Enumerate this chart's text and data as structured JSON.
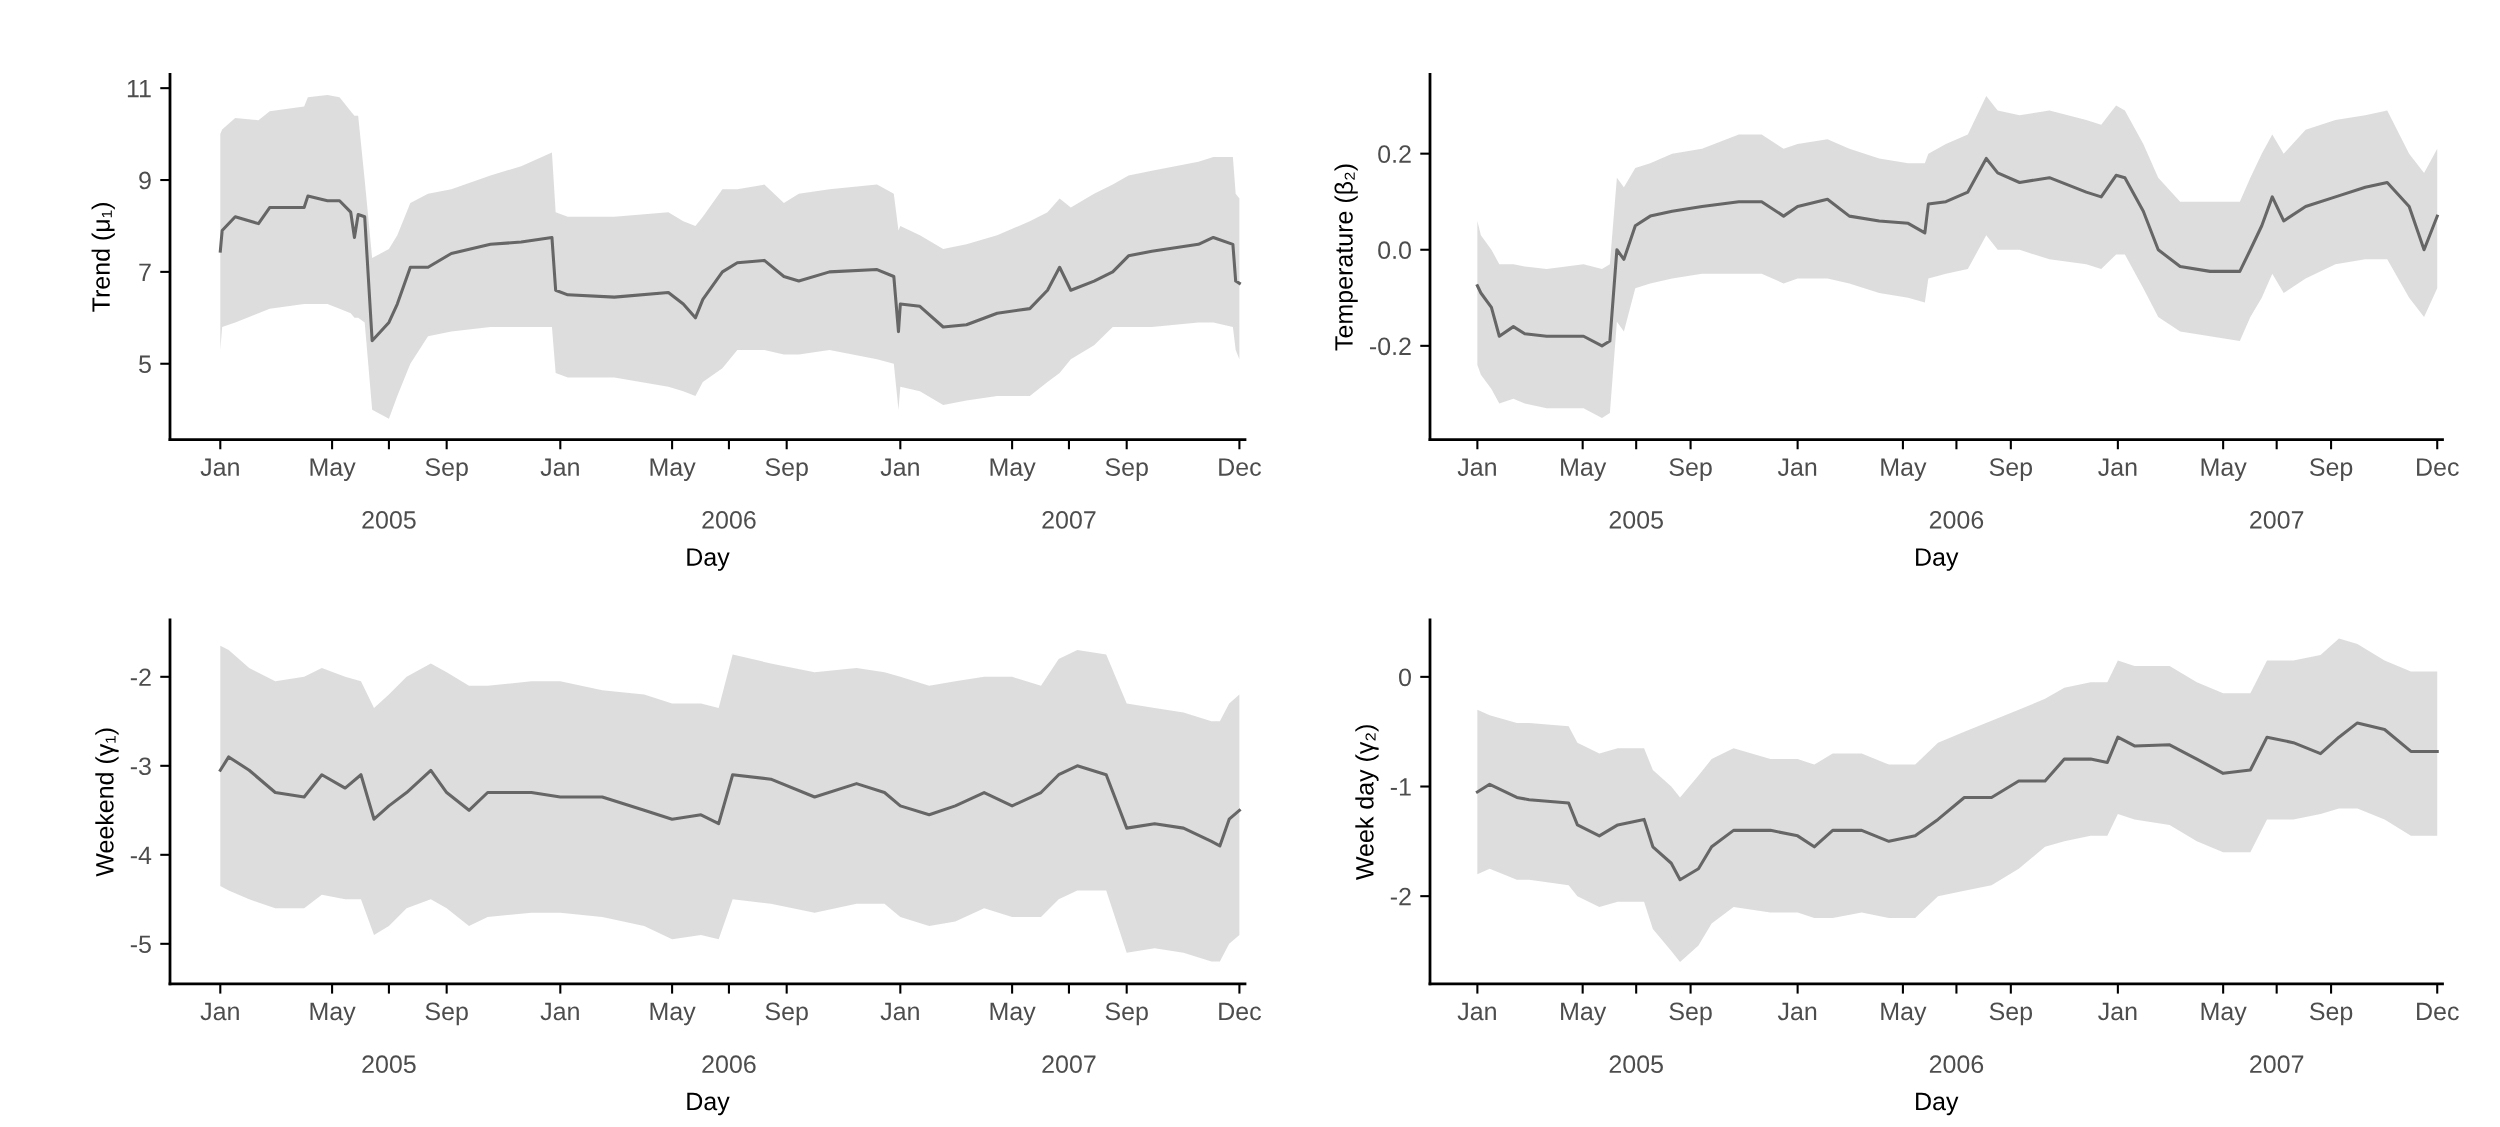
{
  "chart_data": [
    {
      "type": "line",
      "xlabel": "Day",
      "ylabel": "Trend (μ₁)",
      "xlim": [
        "2004-11-08",
        "2008-01-06"
      ],
      "ylim": [
        3.35,
        11.3
      ],
      "yticks": [
        5,
        7,
        9,
        11
      ],
      "xticks": [
        {
          "value": "2005-01-01",
          "label": "Jan"
        },
        {
          "value": "2005-05-01",
          "label": "May"
        },
        {
          "value": "2005-09-01",
          "label": "Sep"
        },
        {
          "value": "2006-01-01",
          "label": "Jan"
        },
        {
          "value": "2006-05-01",
          "label": "May"
        },
        {
          "value": "2006-09-01",
          "label": "Sep"
        },
        {
          "value": "2007-01-01",
          "label": "Jan"
        },
        {
          "value": "2007-05-01",
          "label": "May"
        },
        {
          "value": "2007-09-01",
          "label": "Sep"
        },
        {
          "value": "2007-12-31",
          "label": "Dec"
        }
      ],
      "x2lim": [
        "2004-11-08",
        "2008-01-06"
      ],
      "x2ticks": [
        {
          "value": "2005-07-01",
          "label": "2005"
        },
        {
          "value": "2006-07-01",
          "label": "2006"
        },
        {
          "value": "2007-07-01",
          "label": "2007"
        }
      ],
      "grid": false,
      "marker": "none",
      "line_style": "solid",
      "x": [
        "2005-01-01",
        "2005-01-03",
        "2005-01-17",
        "2005-02-11",
        "2005-02-23",
        "2005-04-01",
        "2005-04-05",
        "2005-04-26",
        "2005-05-09",
        "2005-05-21",
        "2005-05-25",
        "2005-05-29",
        "2005-06-05",
        "2005-06-13",
        "2005-07-01",
        "2005-07-10",
        "2005-07-24",
        "2005-08-12",
        "2005-09-06",
        "2005-10-18",
        "2005-11-20",
        "2005-12-23",
        "2005-12-27",
        "2006-01-09",
        "2006-02-28",
        "2006-04-27",
        "2006-05-13",
        "2006-05-26",
        "2006-06-03",
        "2006-06-24",
        "2006-07-10",
        "2006-08-08",
        "2006-08-29",
        "2006-09-14",
        "2006-10-17",
        "2006-12-07",
        "2006-12-25",
        "2006-12-30",
        "2007-01-01",
        "2007-01-22",
        "2007-02-16",
        "2007-03-13",
        "2007-04-15",
        "2007-05-20",
        "2007-06-08",
        "2007-06-21",
        "2007-07-03",
        "2007-07-28",
        "2007-08-17",
        "2007-09-03",
        "2007-09-28",
        "2007-11-17",
        "2007-12-03",
        "2007-12-24",
        "2007-12-27",
        "2007-12-31"
      ],
      "series": [
        {
          "color": "#666666",
          "values": [
            7.45,
            7.9,
            8.2,
            8.05,
            8.4,
            8.4,
            8.65,
            8.55,
            8.55,
            8.3,
            7.75,
            8.25,
            8.2,
            5.5,
            5.9,
            6.3,
            7.1,
            7.1,
            7.4,
            7.6,
            7.65,
            7.75,
            6.6,
            6.5,
            6.45,
            6.55,
            6.3,
            6.0,
            6.4,
            7.0,
            7.2,
            7.25,
            6.9,
            6.8,
            7.0,
            7.05,
            6.9,
            5.7,
            6.3,
            6.25,
            5.8,
            5.85,
            6.1,
            6.2,
            6.6,
            7.1,
            6.6,
            6.8,
            7.0,
            7.35,
            7.45,
            7.6,
            7.75,
            7.6,
            6.8,
            6.75
          ],
          "upper": [
            10.0,
            10.1,
            10.35,
            10.3,
            10.5,
            10.6,
            10.8,
            10.85,
            10.8,
            10.5,
            10.4,
            10.4,
            9.0,
            7.3,
            7.5,
            7.8,
            8.5,
            8.7,
            8.8,
            9.1,
            9.3,
            9.6,
            8.3,
            8.2,
            8.2,
            8.3,
            8.1,
            8.0,
            8.2,
            8.8,
            8.8,
            8.9,
            8.5,
            8.7,
            8.8,
            8.9,
            8.7,
            7.9,
            8.0,
            7.8,
            7.5,
            7.6,
            7.8,
            8.1,
            8.3,
            8.6,
            8.4,
            8.7,
            8.9,
            9.1,
            9.2,
            9.4,
            9.5,
            9.5,
            8.7,
            8.6
          ],
          "lower": [
            5.3,
            5.8,
            5.9,
            6.1,
            6.2,
            6.3,
            6.3,
            6.3,
            6.2,
            6.1,
            6.0,
            6.0,
            5.9,
            4.0,
            3.8,
            4.3,
            5.0,
            5.6,
            5.7,
            5.8,
            5.8,
            5.8,
            4.8,
            4.7,
            4.7,
            4.5,
            4.4,
            4.3,
            4.6,
            4.9,
            5.3,
            5.3,
            5.2,
            5.2,
            5.3,
            5.1,
            5.0,
            4.0,
            4.5,
            4.4,
            4.1,
            4.2,
            4.3,
            4.3,
            4.6,
            4.8,
            5.1,
            5.4,
            5.8,
            5.8,
            5.8,
            5.9,
            5.9,
            5.8,
            5.3,
            5.1
          ]
        }
      ]
    },
    {
      "type": "line",
      "xlabel": "Day",
      "ylabel": "Temperature (β₂)",
      "xlim": [
        "2004-11-08",
        "2008-01-06"
      ],
      "ylim": [
        -0.395,
        0.365
      ],
      "yticks": [
        {
          "value": -0.2,
          "label": "-0.2"
        },
        {
          "value": 0.0,
          "label": "0.0"
        },
        {
          "value": 0.2,
          "label": "0.2"
        }
      ],
      "xticks": [
        {
          "value": "2005-01-01",
          "label": "Jan"
        },
        {
          "value": "2005-05-01",
          "label": "May"
        },
        {
          "value": "2005-09-01",
          "label": "Sep"
        },
        {
          "value": "2006-01-01",
          "label": "Jan"
        },
        {
          "value": "2006-05-01",
          "label": "May"
        },
        {
          "value": "2006-09-01",
          "label": "Sep"
        },
        {
          "value": "2007-01-01",
          "label": "Jan"
        },
        {
          "value": "2007-05-01",
          "label": "May"
        },
        {
          "value": "2007-09-01",
          "label": "Sep"
        },
        {
          "value": "2007-12-31",
          "label": "Dec"
        }
      ],
      "x2lim": [
        "2004-11-08",
        "2008-01-06"
      ],
      "x2ticks": [
        {
          "value": "2005-07-01",
          "label": "2005"
        },
        {
          "value": "2006-07-01",
          "label": "2006"
        },
        {
          "value": "2007-07-01",
          "label": "2007"
        }
      ],
      "grid": false,
      "marker": "none",
      "line_style": "solid",
      "x": [
        "2005-01-01",
        "2005-01-05",
        "2005-01-17",
        "2005-01-26",
        "2005-02-11",
        "2005-02-24",
        "2005-03-21",
        "2005-05-02",
        "2005-05-23",
        "2005-06-01",
        "2005-06-09",
        "2005-06-17",
        "2005-06-30",
        "2005-07-17",
        "2005-08-11",
        "2005-09-14",
        "2005-10-26",
        "2005-11-21",
        "2005-12-16",
        "2006-01-01",
        "2006-02-04",
        "2006-03-01",
        "2006-04-04",
        "2006-05-07",
        "2006-05-26",
        "2006-05-30",
        "2006-06-19",
        "2006-07-14",
        "2006-08-04",
        "2006-08-17",
        "2006-09-11",
        "2006-10-15",
        "2006-11-26",
        "2006-12-13",
        "2006-12-30",
        "2007-01-09",
        "2007-01-30",
        "2007-02-16",
        "2007-03-13",
        "2007-04-16",
        "2007-05-20",
        "2007-06-01",
        "2007-06-14",
        "2007-06-26",
        "2007-07-09",
        "2007-08-03",
        "2007-09-06",
        "2007-10-10",
        "2007-11-04",
        "2007-11-29",
        "2007-12-16",
        "2007-12-31"
      ],
      "series": [
        {
          "color": "#666666",
          "values": [
            -0.075,
            -0.09,
            -0.12,
            -0.18,
            -0.16,
            -0.175,
            -0.18,
            -0.18,
            -0.2,
            -0.19,
            0.0,
            -0.02,
            0.05,
            0.07,
            0.08,
            0.09,
            0.1,
            0.1,
            0.07,
            0.09,
            0.105,
            0.07,
            0.06,
            0.055,
            0.035,
            0.095,
            0.1,
            0.12,
            0.19,
            0.16,
            0.14,
            0.15,
            0.12,
            0.11,
            0.155,
            0.15,
            0.08,
            0.0,
            -0.035,
            -0.045,
            -0.045,
            0.0,
            0.05,
            0.11,
            0.06,
            0.09,
            0.11,
            0.13,
            0.14,
            0.09,
            0.0,
            0.07
          ],
          "upper": [
            0.06,
            0.03,
            0.0,
            -0.03,
            -0.03,
            -0.035,
            -0.04,
            -0.03,
            -0.04,
            -0.03,
            0.15,
            0.13,
            0.17,
            0.18,
            0.2,
            0.21,
            0.24,
            0.24,
            0.21,
            0.22,
            0.23,
            0.21,
            0.19,
            0.18,
            0.18,
            0.2,
            0.22,
            0.24,
            0.32,
            0.29,
            0.28,
            0.29,
            0.27,
            0.26,
            0.3,
            0.29,
            0.22,
            0.15,
            0.1,
            0.1,
            0.1,
            0.15,
            0.2,
            0.24,
            0.2,
            0.25,
            0.27,
            0.28,
            0.29,
            0.2,
            0.16,
            0.21
          ],
          "lower": [
            -0.24,
            -0.26,
            -0.29,
            -0.32,
            -0.31,
            -0.32,
            -0.33,
            -0.33,
            -0.35,
            -0.34,
            -0.15,
            -0.17,
            -0.08,
            -0.07,
            -0.06,
            -0.05,
            -0.05,
            -0.05,
            -0.07,
            -0.06,
            -0.06,
            -0.07,
            -0.09,
            -0.1,
            -0.11,
            -0.06,
            -0.05,
            -0.04,
            0.03,
            0.0,
            0.0,
            -0.02,
            -0.03,
            -0.04,
            -0.01,
            -0.01,
            -0.08,
            -0.14,
            -0.17,
            -0.18,
            -0.19,
            -0.14,
            -0.1,
            -0.05,
            -0.09,
            -0.06,
            -0.03,
            -0.02,
            -0.02,
            -0.1,
            -0.14,
            -0.08
          ]
        }
      ]
    },
    {
      "type": "line",
      "xlabel": "Day",
      "ylabel": "Weekend (γ₁)",
      "xlim": [
        "2004-11-08",
        "2008-01-06"
      ],
      "ylim": [
        -5.45,
        -1.36
      ],
      "yticks": [
        {
          "value": -5,
          "label": "-5"
        },
        {
          "value": -4,
          "label": "-4"
        },
        {
          "value": -3,
          "label": "-3"
        },
        {
          "value": -2,
          "label": "-2"
        }
      ],
      "xticks": [
        {
          "value": "2005-01-01",
          "label": "Jan"
        },
        {
          "value": "2005-05-01",
          "label": "May"
        },
        {
          "value": "2005-09-01",
          "label": "Sep"
        },
        {
          "value": "2006-01-01",
          "label": "Jan"
        },
        {
          "value": "2006-05-01",
          "label": "May"
        },
        {
          "value": "2006-09-01",
          "label": "Sep"
        },
        {
          "value": "2007-01-01",
          "label": "Jan"
        },
        {
          "value": "2007-05-01",
          "label": "May"
        },
        {
          "value": "2007-09-01",
          "label": "Sep"
        },
        {
          "value": "2007-12-31",
          "label": "Dec"
        }
      ],
      "x2lim": [
        "2004-11-08",
        "2008-01-06"
      ],
      "x2ticks": [
        {
          "value": "2005-07-01",
          "label": "2005"
        },
        {
          "value": "2006-07-01",
          "label": "2006"
        },
        {
          "value": "2007-07-01",
          "label": "2007"
        }
      ],
      "grid": false,
      "marker": "none",
      "line_style": "solid",
      "x": [
        "2005-01-01",
        "2005-01-10",
        "2005-02-01",
        "2005-03-01",
        "2005-04-01",
        "2005-04-20",
        "2005-05-15",
        "2005-06-01",
        "2005-06-15",
        "2005-07-01",
        "2005-07-20",
        "2005-08-15",
        "2005-09-01",
        "2005-09-25",
        "2005-10-15",
        "2005-12-01",
        "2006-01-01",
        "2006-02-15",
        "2006-04-01",
        "2006-05-01",
        "2006-06-01",
        "2006-06-20",
        "2006-07-05",
        "2006-08-15",
        "2006-10-01",
        "2006-11-15",
        "2006-12-15",
        "2007-01-01",
        "2007-02-01",
        "2007-03-01",
        "2007-04-01",
        "2007-05-01",
        "2007-06-01",
        "2007-06-20",
        "2007-07-10",
        "2007-08-10",
        "2007-09-01",
        "2007-10-01",
        "2007-11-01",
        "2007-12-01",
        "2007-12-10",
        "2007-12-20",
        "2007-12-31"
      ],
      "series": [
        {
          "color": "#666666",
          "values": [
            -3.05,
            -2.9,
            -3.05,
            -3.3,
            -3.35,
            -3.1,
            -3.25,
            -3.1,
            -3.6,
            -3.45,
            -3.3,
            -3.05,
            -3.3,
            -3.5,
            -3.3,
            -3.3,
            -3.35,
            -3.35,
            -3.5,
            -3.6,
            -3.55,
            -3.65,
            -3.1,
            -3.15,
            -3.35,
            -3.2,
            -3.3,
            -3.45,
            -3.55,
            -3.45,
            -3.3,
            -3.45,
            -3.3,
            -3.1,
            -3.0,
            -3.1,
            -3.7,
            -3.65,
            -3.7,
            -3.85,
            -3.9,
            -3.6,
            -3.5
          ],
          "upper": [
            -1.65,
            -1.7,
            -1.9,
            -2.05,
            -2.0,
            -1.9,
            -2.0,
            -2.05,
            -2.35,
            -2.2,
            -2.0,
            -1.85,
            -1.95,
            -2.1,
            -2.1,
            -2.05,
            -2.05,
            -2.15,
            -2.2,
            -2.3,
            -2.3,
            -2.35,
            -1.75,
            -1.85,
            -1.95,
            -1.9,
            -1.95,
            -2.0,
            -2.1,
            -2.05,
            -2.0,
            -2.0,
            -2.1,
            -1.8,
            -1.7,
            -1.75,
            -2.3,
            -2.35,
            -2.4,
            -2.5,
            -2.5,
            -2.3,
            -2.2
          ],
          "lower": [
            -4.35,
            -4.4,
            -4.5,
            -4.6,
            -4.6,
            -4.45,
            -4.5,
            -4.5,
            -4.9,
            -4.8,
            -4.6,
            -4.5,
            -4.6,
            -4.8,
            -4.7,
            -4.65,
            -4.65,
            -4.7,
            -4.8,
            -4.95,
            -4.9,
            -4.95,
            -4.5,
            -4.55,
            -4.65,
            -4.55,
            -4.55,
            -4.7,
            -4.8,
            -4.75,
            -4.6,
            -4.7,
            -4.7,
            -4.5,
            -4.4,
            -4.4,
            -5.1,
            -5.05,
            -5.1,
            -5.2,
            -5.2,
            -5.0,
            -4.9
          ]
        }
      ]
    },
    {
      "type": "line",
      "xlabel": "Day",
      "ylabel": "Week day (γ₂)",
      "xlim": [
        "2004-11-08",
        "2008-01-06"
      ],
      "ylim": [
        -2.8,
        0.52
      ],
      "yticks": [
        {
          "value": -2,
          "label": "-2"
        },
        {
          "value": -1,
          "label": "-1"
        },
        0
      ],
      "xticks": [
        {
          "value": "2005-01-01",
          "label": "Jan"
        },
        {
          "value": "2005-05-01",
          "label": "May"
        },
        {
          "value": "2005-09-01",
          "label": "Sep"
        },
        {
          "value": "2006-01-01",
          "label": "Jan"
        },
        {
          "value": "2006-05-01",
          "label": "May"
        },
        {
          "value": "2006-09-01",
          "label": "Sep"
        },
        {
          "value": "2007-01-01",
          "label": "Jan"
        },
        {
          "value": "2007-05-01",
          "label": "May"
        },
        {
          "value": "2007-09-01",
          "label": "Sep"
        },
        {
          "value": "2007-12-31",
          "label": "Dec"
        }
      ],
      "x2lim": [
        "2004-11-08",
        "2008-01-06"
      ],
      "x2ticks": [
        {
          "value": "2005-07-01",
          "label": "2005"
        },
        {
          "value": "2006-07-01",
          "label": "2006"
        },
        {
          "value": "2007-07-01",
          "label": "2007"
        }
      ],
      "grid": false,
      "marker": "none",
      "line_style": "solid",
      "x": [
        "2005-01-01",
        "2005-01-15",
        "2005-02-15",
        "2005-03-01",
        "2005-04-15",
        "2005-04-25",
        "2005-05-20",
        "2005-06-10",
        "2005-07-10",
        "2005-07-20",
        "2005-08-10",
        "2005-08-20",
        "2005-09-10",
        "2005-09-25",
        "2005-10-20",
        "2005-12-01",
        "2006-01-01",
        "2006-01-20",
        "2006-02-10",
        "2006-03-15",
        "2006-04-15",
        "2006-05-15",
        "2006-06-10",
        "2006-07-10",
        "2006-08-10",
        "2006-09-10",
        "2006-10-10",
        "2006-11-01",
        "2006-12-01",
        "2006-12-20",
        "2007-01-01",
        "2007-01-20",
        "2007-03-01",
        "2007-04-01",
        "2007-05-01",
        "2007-06-01",
        "2007-06-20",
        "2007-07-20",
        "2007-08-20",
        "2007-09-10",
        "2007-10-01",
        "2007-11-01",
        "2007-12-01",
        "2007-12-31"
      ],
      "series": [
        {
          "color": "#666666",
          "values": [
            -1.05,
            -0.98,
            -1.1,
            -1.12,
            -1.15,
            -1.35,
            -1.45,
            -1.35,
            -1.3,
            -1.55,
            -1.7,
            -1.85,
            -1.75,
            -1.55,
            -1.4,
            -1.4,
            -1.45,
            -1.55,
            -1.4,
            -1.4,
            -1.5,
            -1.45,
            -1.3,
            -1.1,
            -1.1,
            -0.95,
            -0.95,
            -0.75,
            -0.75,
            -0.78,
            -0.55,
            -0.63,
            -0.62,
            -0.75,
            -0.88,
            -0.85,
            -0.55,
            -0.6,
            -0.7,
            -0.55,
            -0.42,
            -0.48,
            -0.68,
            -0.68
          ],
          "upper": [
            -0.3,
            -0.35,
            -0.42,
            -0.42,
            -0.45,
            -0.6,
            -0.7,
            -0.65,
            -0.65,
            -0.85,
            -1.0,
            -1.1,
            -0.9,
            -0.75,
            -0.65,
            -0.75,
            -0.75,
            -0.8,
            -0.7,
            -0.7,
            -0.8,
            -0.8,
            -0.6,
            -0.5,
            -0.4,
            -0.3,
            -0.2,
            -0.1,
            -0.05,
            -0.05,
            0.15,
            0.1,
            0.1,
            -0.05,
            -0.15,
            -0.15,
            0.15,
            0.15,
            0.2,
            0.35,
            0.3,
            0.15,
            0.05,
            0.05
          ],
          "lower": [
            -1.8,
            -1.75,
            -1.85,
            -1.85,
            -1.9,
            -2.0,
            -2.1,
            -2.05,
            -2.05,
            -2.3,
            -2.5,
            -2.6,
            -2.45,
            -2.25,
            -2.1,
            -2.15,
            -2.15,
            -2.2,
            -2.2,
            -2.15,
            -2.2,
            -2.2,
            -2.0,
            -1.95,
            -1.9,
            -1.75,
            -1.55,
            -1.5,
            -1.45,
            -1.45,
            -1.25,
            -1.3,
            -1.35,
            -1.5,
            -1.6,
            -1.6,
            -1.3,
            -1.3,
            -1.25,
            -1.2,
            -1.2,
            -1.3,
            -1.45,
            -1.45
          ]
        }
      ]
    }
  ]
}
